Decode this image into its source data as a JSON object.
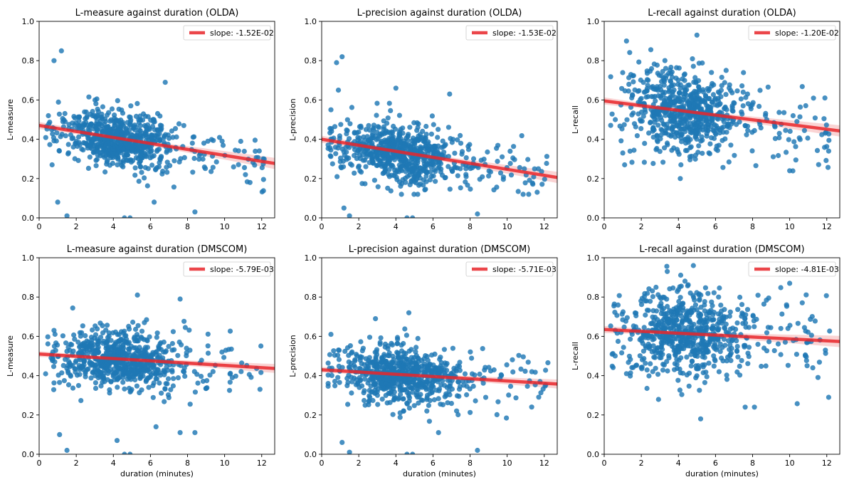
{
  "chart_data": [
    {
      "type": "scatter",
      "title": "L-measure against duration (OLDA)",
      "xlabel": "",
      "ylabel": "L-measure",
      "xlim": [
        0,
        12.7
      ],
      "ylim": [
        0,
        1.0
      ],
      "xticks": [
        0,
        2,
        4,
        6,
        8,
        10,
        12
      ],
      "yticks": [
        0.0,
        0.2,
        0.4,
        0.6,
        0.8,
        1.0
      ],
      "legend": "top-right",
      "series": [
        {
          "kind": "regression",
          "name": "slope: -1.52E-02",
          "color": "#e8262a",
          "slope": -0.0152,
          "intercept": 0.47,
          "ci": 0.015
        },
        {
          "kind": "points",
          "color": "#1f77b4",
          "cloud": {
            "seed": 11,
            "count": 720,
            "x_center": 4.3,
            "y_mean": 0.4,
            "y_spread": 0.07,
            "slope": -0.0152
          },
          "points": [
            [
              0.8,
              0.8
            ],
            [
              1.2,
              0.85
            ],
            [
              1.0,
              0.08
            ],
            [
              1.5,
              0.01
            ],
            [
              4.6,
              0.0
            ],
            [
              4.9,
              0.0
            ],
            [
              8.4,
              0.03
            ],
            [
              6.2,
              0.08
            ],
            [
              6.8,
              0.69
            ],
            [
              0.5,
              0.52
            ],
            [
              0.7,
              0.27
            ]
          ]
        }
      ]
    },
    {
      "type": "scatter",
      "title": "L-precision against duration (OLDA)",
      "xlabel": "",
      "ylabel": "L-precision",
      "xlim": [
        0,
        12.7
      ],
      "ylim": [
        0,
        1.0
      ],
      "xticks": [
        0,
        2,
        4,
        6,
        8,
        10,
        12
      ],
      "yticks": [
        0.0,
        0.2,
        0.4,
        0.6,
        0.8,
        1.0
      ],
      "legend": "top-right",
      "series": [
        {
          "kind": "regression",
          "name": "slope: -1.53E-02",
          "color": "#e8262a",
          "slope": -0.0153,
          "intercept": 0.4,
          "ci": 0.015
        },
        {
          "kind": "points",
          "color": "#1f77b4",
          "cloud": {
            "seed": 23,
            "count": 720,
            "x_center": 4.3,
            "y_mean": 0.33,
            "y_spread": 0.075,
            "slope": -0.0153
          },
          "points": [
            [
              0.8,
              0.79
            ],
            [
              1.1,
              0.82
            ],
            [
              0.9,
              0.65
            ],
            [
              1.2,
              0.05
            ],
            [
              1.5,
              0.01
            ],
            [
              4.6,
              0.0
            ],
            [
              4.9,
              0.0
            ],
            [
              8.4,
              0.02
            ],
            [
              6.9,
              0.63
            ],
            [
              4.0,
              0.66
            ],
            [
              0.5,
              0.55
            ]
          ]
        }
      ]
    },
    {
      "type": "scatter",
      "title": "L-recall against duration (OLDA)",
      "xlabel": "",
      "ylabel": "L-recall",
      "xlim": [
        0,
        12.7
      ],
      "ylim": [
        0,
        1.0
      ],
      "xticks": [
        0,
        2,
        4,
        6,
        8,
        10,
        12
      ],
      "yticks": [
        0.0,
        0.2,
        0.4,
        0.6,
        0.8,
        1.0
      ],
      "legend": "top-right",
      "series": [
        {
          "kind": "regression",
          "name": "slope: -1.20E-02",
          "color": "#e8262a",
          "slope": -0.012,
          "intercept": 0.595,
          "ci": 0.015
        },
        {
          "kind": "points",
          "color": "#1f77b4",
          "cloud": {
            "seed": 37,
            "count": 720,
            "x_center": 4.3,
            "y_mean": 0.55,
            "y_spread": 0.1,
            "slope": -0.012
          },
          "points": [
            [
              1.2,
              0.9
            ],
            [
              5.0,
              0.93
            ],
            [
              4.1,
              0.2
            ],
            [
              10.0,
              0.24
            ],
            [
              0.6,
              0.5
            ],
            [
              1.0,
              0.33
            ],
            [
              1.1,
              0.27
            ],
            [
              12.1,
              0.34
            ],
            [
              11.9,
              0.61
            ]
          ]
        }
      ]
    },
    {
      "type": "scatter",
      "title": "L-measure against duration (DMSCOM)",
      "xlabel": "duration (minutes)",
      "ylabel": "L-measure",
      "xlim": [
        0,
        12.7
      ],
      "ylim": [
        0,
        1.0
      ],
      "xticks": [
        0,
        2,
        4,
        6,
        8,
        10,
        12
      ],
      "yticks": [
        0.0,
        0.2,
        0.4,
        0.6,
        0.8,
        1.0
      ],
      "legend": "top-right",
      "series": [
        {
          "kind": "regression",
          "name": "slope: -5.79E-03",
          "color": "#e8262a",
          "slope": -0.00579,
          "intercept": 0.51,
          "ci": 0.012
        },
        {
          "kind": "points",
          "color": "#1f77b4",
          "cloud": {
            "seed": 53,
            "count": 720,
            "x_center": 4.3,
            "y_mean": 0.48,
            "y_spread": 0.08,
            "slope": -0.00579
          },
          "points": [
            [
              1.1,
              0.1
            ],
            [
              1.5,
              0.02
            ],
            [
              4.6,
              0.0
            ],
            [
              4.9,
              0.0
            ],
            [
              4.2,
              0.07
            ],
            [
              6.3,
              0.14
            ],
            [
              7.6,
              0.11
            ],
            [
              8.4,
              0.11
            ],
            [
              5.3,
              0.81
            ],
            [
              7.6,
              0.79
            ],
            [
              0.8,
              0.63
            ]
          ]
        }
      ]
    },
    {
      "type": "scatter",
      "title": "L-precision against duration (DMSCOM)",
      "xlabel": "duration (minutes)",
      "ylabel": "L-precision",
      "xlim": [
        0,
        12.7
      ],
      "ylim": [
        0,
        1.0
      ],
      "xticks": [
        0,
        2,
        4,
        6,
        8,
        10,
        12
      ],
      "yticks": [
        0.0,
        0.2,
        0.4,
        0.6,
        0.8,
        1.0
      ],
      "legend": "top-right",
      "series": [
        {
          "kind": "regression",
          "name": "slope: -5.71E-03",
          "color": "#e8262a",
          "slope": -0.00571,
          "intercept": 0.43,
          "ci": 0.012
        },
        {
          "kind": "points",
          "color": "#1f77b4",
          "cloud": {
            "seed": 67,
            "count": 720,
            "x_center": 4.3,
            "y_mean": 0.4,
            "y_spread": 0.07,
            "slope": -0.00571
          },
          "points": [
            [
              1.1,
              0.06
            ],
            [
              1.5,
              0.01
            ],
            [
              4.6,
              0.0
            ],
            [
              4.9,
              0.0
            ],
            [
              8.4,
              0.02
            ],
            [
              2.9,
              0.69
            ],
            [
              4.7,
              0.72
            ],
            [
              0.5,
              0.61
            ],
            [
              6.3,
              0.11
            ]
          ]
        }
      ]
    },
    {
      "type": "scatter",
      "title": "L-recall against duration (DMSCOM)",
      "xlabel": "duration (minutes)",
      "ylabel": "L-recall",
      "xlim": [
        0,
        12.7
      ],
      "ylim": [
        0,
        1.0
      ],
      "xticks": [
        0,
        2,
        4,
        6,
        8,
        10,
        12
      ],
      "yticks": [
        0.0,
        0.2,
        0.4,
        0.6,
        0.8,
        1.0
      ],
      "legend": "top-right",
      "series": [
        {
          "kind": "regression",
          "name": "slope: -4.81E-03",
          "color": "#e8262a",
          "slope": -0.00481,
          "intercept": 0.635,
          "ci": 0.015
        },
        {
          "kind": "points",
          "color": "#1f77b4",
          "cloud": {
            "seed": 79,
            "count": 720,
            "x_center": 4.3,
            "y_mean": 0.62,
            "y_spread": 0.11,
            "slope": -0.00481
          },
          "points": [
            [
              3.4,
              0.93
            ],
            [
              5.2,
              0.18
            ],
            [
              12.1,
              0.29
            ],
            [
              10.0,
              0.87
            ],
            [
              0.6,
              0.63
            ],
            [
              7.6,
              0.24
            ],
            [
              8.1,
              0.24
            ],
            [
              1.2,
              0.41
            ]
          ]
        }
      ]
    }
  ]
}
